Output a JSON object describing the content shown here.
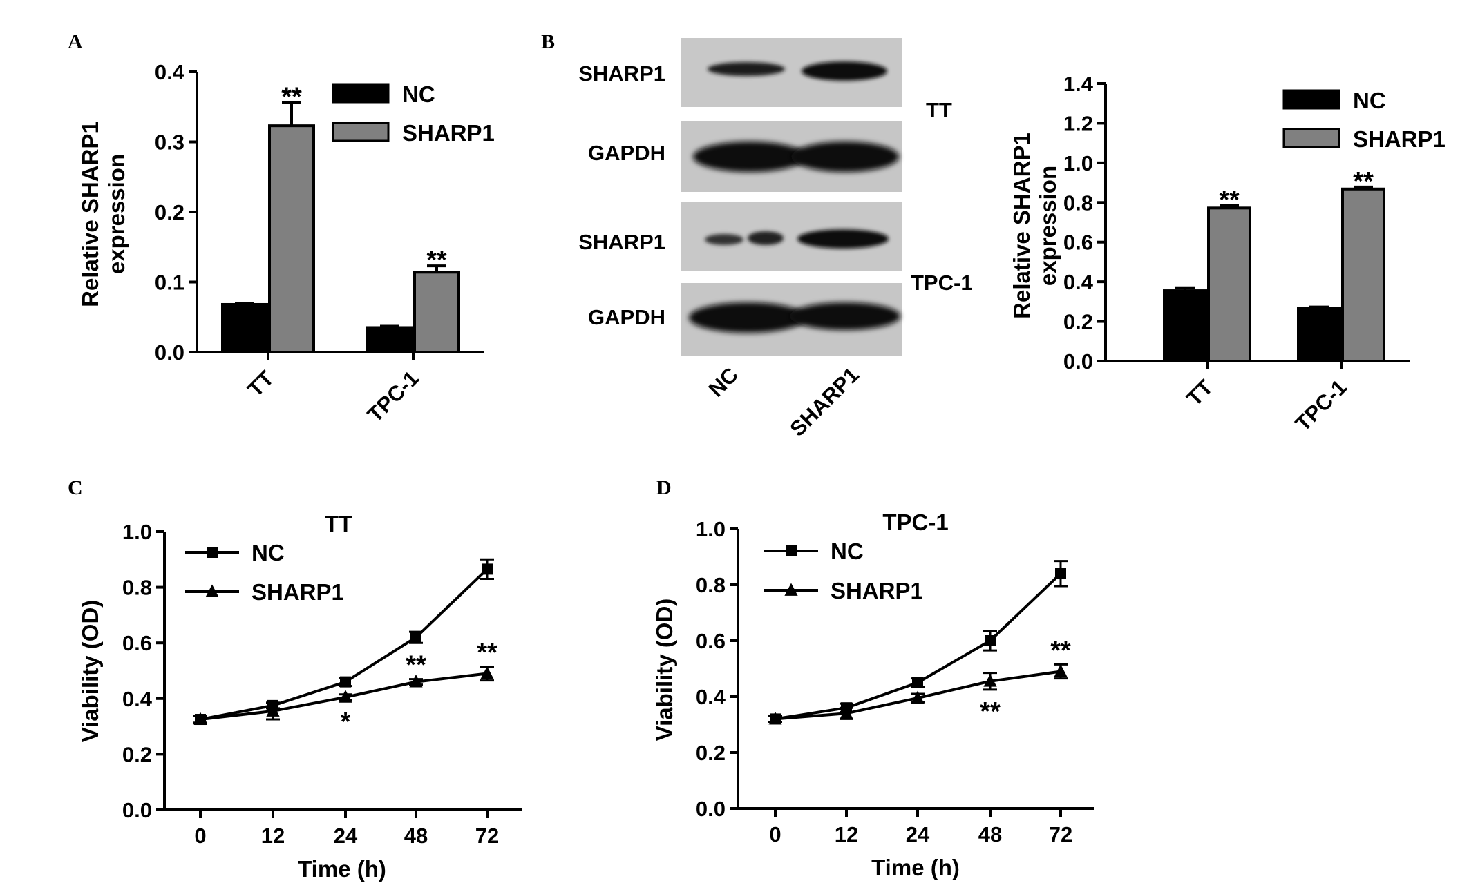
{
  "panel_labels": [
    "A",
    "B",
    "C",
    "D"
  ],
  "chart_data": [
    {
      "id": "A",
      "type": "bar",
      "ylabel": [
        "Relative SHARP1",
        "expression"
      ],
      "categories": [
        "TT",
        "TPC-1"
      ],
      "ylim": [
        0,
        0.4
      ],
      "yticks": [
        "0.0",
        "0.1",
        "0.2",
        "0.3",
        "0.4"
      ],
      "legend": [
        "NC",
        "SHARP1"
      ],
      "series": [
        {
          "name": "NC",
          "color": "#000000",
          "values": [
            0.068,
            0.035
          ],
          "errors": [
            0.002,
            0.002
          ]
        },
        {
          "name": "SHARP1",
          "color": "#808080",
          "values": [
            0.323,
            0.114
          ],
          "errors": [
            0.033,
            0.009
          ]
        }
      ],
      "annotations": [
        {
          "series": 1,
          "category": 0,
          "text": "**"
        },
        {
          "series": 1,
          "category": 1,
          "text": "**"
        }
      ]
    },
    {
      "id": "B",
      "type": "bar",
      "ylabel": [
        "Relative SHARP1",
        "expression"
      ],
      "categories": [
        "TT",
        "TPC-1"
      ],
      "ylim": [
        0,
        1.4
      ],
      "yticks": [
        "0.0",
        "0.2",
        "0.4",
        "0.6",
        "0.8",
        "1.0",
        "1.2",
        "1.4"
      ],
      "legend": [
        "NC",
        "SHARP1"
      ],
      "series": [
        {
          "name": "NC",
          "color": "#000000",
          "values": [
            0.355,
            0.265
          ],
          "errors": [
            0.015,
            0.008
          ]
        },
        {
          "name": "SHARP1",
          "color": "#808080",
          "values": [
            0.772,
            0.868
          ],
          "errors": [
            0.012,
            0.01
          ]
        }
      ],
      "annotations": [
        {
          "series": 1,
          "category": 0,
          "text": "**"
        },
        {
          "series": 1,
          "category": 1,
          "text": "**"
        }
      ]
    },
    {
      "id": "C",
      "type": "line",
      "title": "TT",
      "xlabel": "Time (h)",
      "ylabel": "Viability (OD)",
      "x": [
        "0",
        "12",
        "24",
        "48",
        "72"
      ],
      "ylim": [
        0,
        1.0
      ],
      "yticks": [
        "0.0",
        "0.2",
        "0.4",
        "0.6",
        "0.8",
        "1.0"
      ],
      "series": [
        {
          "name": "NC",
          "marker": "square",
          "values": [
            0.325,
            0.375,
            0.46,
            0.62,
            0.865
          ],
          "errors": [
            0.012,
            0.01,
            0.015,
            0.02,
            0.035
          ]
        },
        {
          "name": "SHARP1",
          "marker": "triangle",
          "values": [
            0.325,
            0.355,
            0.405,
            0.46,
            0.49
          ],
          "errors": [
            0.012,
            0.03,
            0.01,
            0.01,
            0.025
          ]
        }
      ],
      "annotations": [
        {
          "point": 2,
          "text": "*",
          "position": "below"
        },
        {
          "point": 3,
          "text": "**",
          "position": "above"
        },
        {
          "point": 4,
          "text": "**",
          "position": "above"
        }
      ]
    },
    {
      "id": "D",
      "type": "line",
      "title": "TPC-1",
      "xlabel": "Time (h)",
      "ylabel": "Viability (OD)",
      "x": [
        "0",
        "12",
        "24",
        "48",
        "72"
      ],
      "ylim": [
        0,
        1.0
      ],
      "yticks": [
        "0.0",
        "0.2",
        "0.4",
        "0.6",
        "0.8",
        "1.0"
      ],
      "series": [
        {
          "name": "NC",
          "marker": "square",
          "values": [
            0.32,
            0.36,
            0.45,
            0.6,
            0.84
          ],
          "errors": [
            0.01,
            0.015,
            0.015,
            0.035,
            0.045
          ]
        },
        {
          "name": "SHARP1",
          "marker": "triangle",
          "values": [
            0.32,
            0.34,
            0.395,
            0.455,
            0.49
          ],
          "errors": [
            0.01,
            0.02,
            0.015,
            0.03,
            0.025
          ]
        }
      ],
      "annotations": [
        {
          "point": 3,
          "text": "**",
          "position": "below"
        },
        {
          "point": 4,
          "text": "**",
          "position": "above"
        }
      ]
    }
  ],
  "western_blot": {
    "bands": [
      "SHARP1",
      "GAPDH",
      "SHARP1",
      "GAPDH"
    ],
    "cell_lines": [
      "TT",
      "TPC-1"
    ],
    "lanes": [
      "NC",
      "SHARP1"
    ]
  }
}
